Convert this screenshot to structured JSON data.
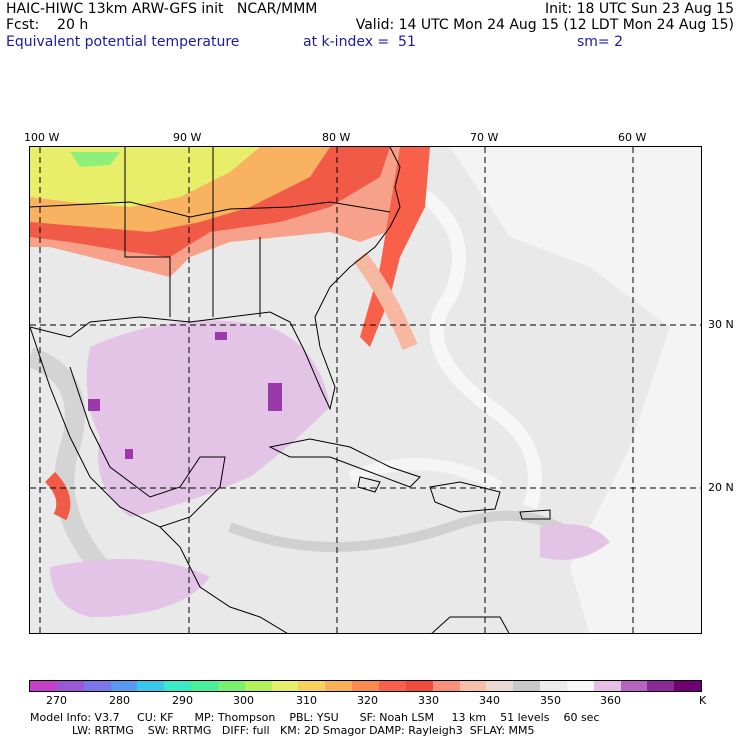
{
  "header": {
    "line1_left": "HAIC-HIWC 13km ARW-GFS init   NCAR/MMM",
    "line1_right": "Init: 18 UTC Sun 23 Aug 15",
    "line2_left": "Fcst:    20 h",
    "line2_right": "Valid: 14 UTC Mon 24 Aug 15 (12 LDT Mon 24 Aug 15)",
    "field_name": "Equivalent potential temperature",
    "level": "at k-index =  51",
    "smoothing": "sm= 2"
  },
  "map": {
    "lon_labels": [
      "100 W",
      "90 W",
      "80 W",
      "70 W",
      "60 W"
    ],
    "lat_labels": [
      "30 N",
      "20 N"
    ]
  },
  "colorbar": {
    "colors": [
      "#c23fc6",
      "#9a58d6",
      "#7a78e8",
      "#5a9aee",
      "#3ac8ea",
      "#3aeac6",
      "#48f09a",
      "#7af070",
      "#b4f05a",
      "#e6f06a",
      "#f7d060",
      "#f9b05a",
      "#fa8a50",
      "#f8604a",
      "#f04c3c",
      "#f6907a",
      "#f7c0a8",
      "#e9dbd3",
      "#c8c8c8",
      "#ececec",
      "#f7f7f7",
      "#e4bfe4",
      "#b565c0",
      "#8c2a98",
      "#6e0074"
    ],
    "labels": [
      "270",
      "280",
      "290",
      "300",
      "310",
      "320",
      "330",
      "340",
      "350",
      "360"
    ],
    "unit": "K"
  },
  "footer": {
    "line1": "Model Info: V3.7     CU: KF      MP: Thompson    PBL: YSU      SF: Noah LSM     13 km    51 levels    60 sec",
    "line2": "LW: RRTMG    SW: RRTMG   DIFF: full   KM: 2D Smagor DAMP: Rayleigh3  SFLAY: MM5"
  }
}
